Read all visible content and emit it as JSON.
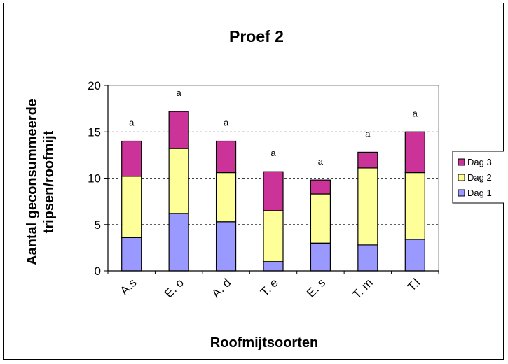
{
  "chart_data": {
    "type": "bar",
    "stacked": true,
    "title": "Proef 2",
    "xlabel": "Roofmijtsoorten",
    "ylabel_lines": [
      "Aantal geconsummeerde",
      "tripsen/roofmijt"
    ],
    "ylim": [
      0,
      20
    ],
    "yticks": [
      0,
      5,
      10,
      15,
      20
    ],
    "grid": "horizontal dashed",
    "legend_position": "right",
    "categories": [
      "A.s",
      "E. o",
      "A. d",
      "T. e",
      "E. s",
      "T. m",
      "T.l"
    ],
    "series": [
      {
        "name": "Dag 1",
        "color": "#9999ff",
        "values": [
          3.6,
          6.2,
          5.3,
          1.0,
          3.0,
          2.8,
          3.4
        ]
      },
      {
        "name": "Dag 2",
        "color": "#ffff99",
        "values": [
          6.6,
          7.0,
          5.3,
          5.5,
          5.3,
          8.3,
          7.2
        ]
      },
      {
        "name": "Dag 3",
        "color": "#cc3399",
        "values": [
          3.8,
          4.0,
          3.4,
          4.2,
          1.5,
          1.7,
          4.4
        ]
      }
    ],
    "annotations": [
      "a",
      "a",
      "a",
      "a",
      "a",
      "a",
      "a"
    ],
    "legend_order": [
      "Dag 3",
      "Dag 2",
      "Dag 1"
    ]
  }
}
